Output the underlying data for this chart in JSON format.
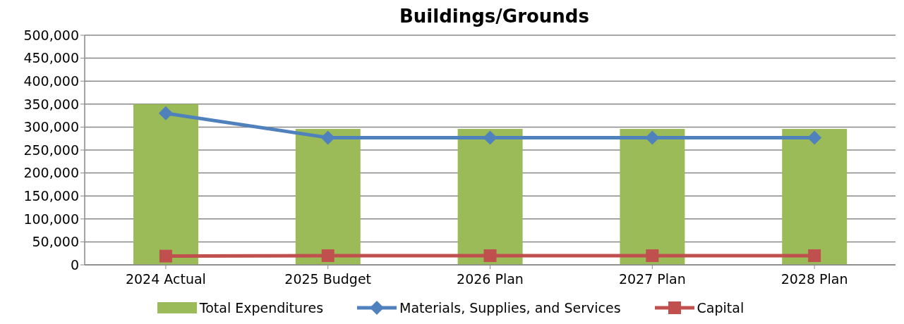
{
  "chart_data": {
    "type": "bar",
    "title": "Buildings/Grounds",
    "categories": [
      "2024 Actual",
      "2025 Budget",
      "2026 Plan",
      "2027 Plan",
      "2028 Plan"
    ],
    "series": [
      {
        "name": "Total Expenditures",
        "color": "#9bbb59",
        "values": [
          350000,
          296000,
          296000,
          296000,
          296000
        ]
      },
      {
        "name": "Materials, Supplies, and Services",
        "type": "line",
        "color": "#4f81bd",
        "marker": "diamond",
        "values": [
          330000,
          277000,
          277000,
          277000,
          277000
        ]
      },
      {
        "name": "Capital",
        "type": "line",
        "color": "#c0504d",
        "marker": "square",
        "values": [
          19000,
          20000,
          20000,
          20000,
          20000
        ]
      }
    ],
    "ylim": [
      0,
      500000
    ],
    "yticks": [
      0,
      {
        "value": 50000,
        "label": "50,000"
      },
      {
        "value": 100000,
        "label": "100,000"
      },
      {
        "value": 150000,
        "label": "150,000"
      },
      {
        "value": 200000,
        "label": "200,000"
      },
      {
        "value": 250000,
        "label": "250,000"
      },
      {
        "value": 300000,
        "label": "300,000"
      },
      {
        "value": 350000,
        "label": "350,000"
      },
      {
        "value": 400000,
        "label": "400,000"
      },
      {
        "value": 450000,
        "label": "450,000"
      },
      {
        "value": 500000,
        "label": "500,000"
      }
    ],
    "grid": "y",
    "legend": "bottom"
  }
}
